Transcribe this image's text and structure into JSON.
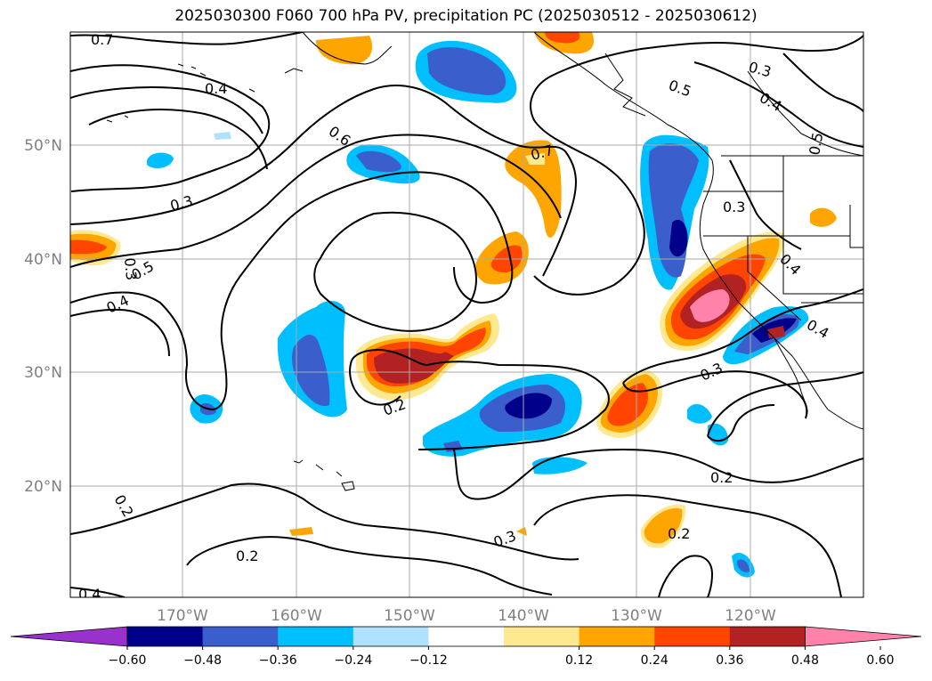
{
  "title": "2025030300 F060 700 hPa PV, precipitation PC (2025030512 - 2025030612)",
  "lat_labels": [
    "50°N",
    "40°N",
    "30°N",
    "20°N"
  ],
  "lon_labels": [
    "170°W",
    "160°W",
    "150°W",
    "140°W",
    "130°W",
    "120°W"
  ],
  "contour_labels": [
    "0.7",
    "0.4",
    "0.6",
    "0.3",
    "0.5",
    "0.4",
    "0.3",
    "0.4",
    "0.5",
    "0.3",
    "0.5",
    "0.4",
    "0.2",
    "0.3",
    "0.7",
    "0.4",
    "0.2",
    "0.3",
    "0.2",
    "0.2",
    "0.2",
    "0.3",
    "0.4"
  ],
  "colorbar": {
    "ticks": [
      "−0.60",
      "−0.48",
      "−0.36",
      "−0.24",
      "−0.12",
      "0.12",
      "0.24",
      "0.36",
      "0.48",
      "0.60"
    ],
    "colors": [
      "#9932cc",
      "#00008b",
      "#3a5fcd",
      "#00bfff",
      "#b0e2ff",
      "#ffffff",
      "#ffe990",
      "#ffa500",
      "#ff4500",
      "#b22222",
      "#ff82ab"
    ]
  }
}
